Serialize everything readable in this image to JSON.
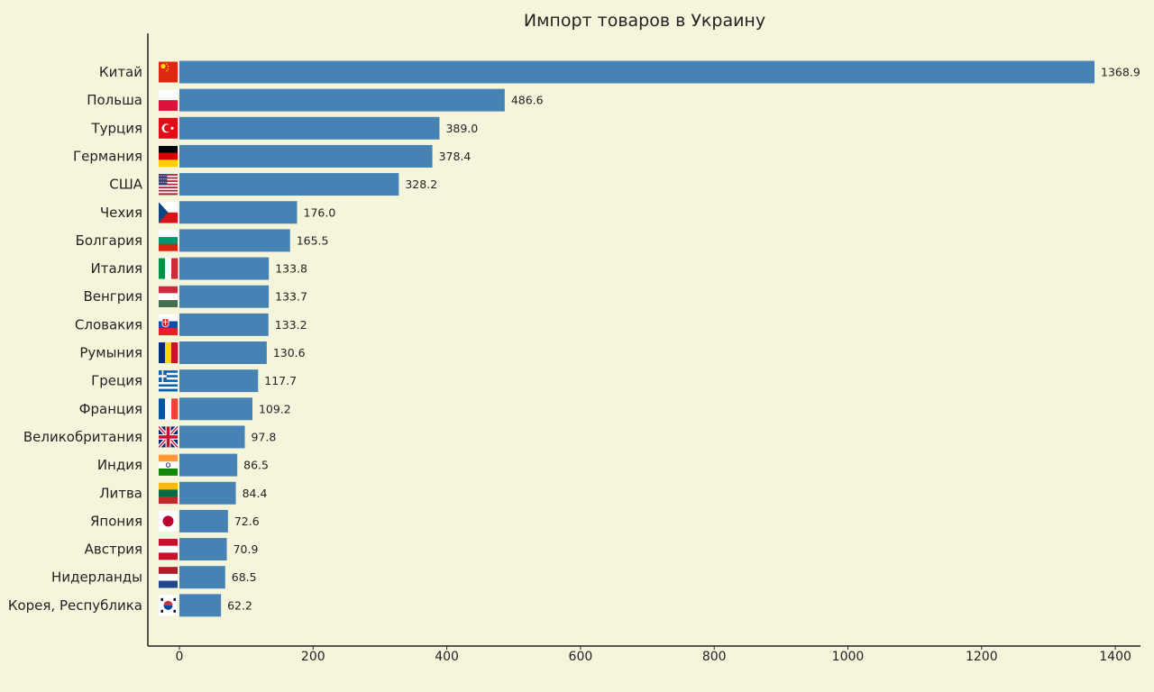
{
  "chart_data": {
    "type": "bar",
    "orientation": "horizontal",
    "title": "Импорт товаров в Украину",
    "xlabel": "",
    "ylabel": "",
    "xlim": [
      -47,
      1380
    ],
    "xticks": [
      0,
      200,
      400,
      600,
      800,
      1000,
      1200,
      1400
    ],
    "grid": false,
    "bar_color": "#4682b4",
    "background": "#f5f5dc",
    "categories": [
      "Китай",
      "Польша",
      "Турция",
      "Германия",
      "США",
      "Чехия",
      "Болгария",
      "Италия",
      "Венгрия",
      "Словакия",
      "Румыния",
      "Греция",
      "Франция",
      "Великобритания",
      "Индия",
      "Литва",
      "Япония",
      "Австрия",
      "Нидерланды",
      "Корея, Республика"
    ],
    "values": [
      1368.9,
      486.6,
      389.0,
      378.4,
      328.2,
      176.0,
      165.5,
      133.8,
      133.7,
      133.2,
      130.6,
      117.7,
      109.2,
      97.8,
      86.5,
      84.4,
      72.6,
      70.9,
      68.5,
      62.2
    ],
    "value_labels": [
      "1368.9",
      "486.6",
      "389.0",
      "378.4",
      "328.2",
      "176.0",
      "165.5",
      "133.8",
      "133.7",
      "133.2",
      "130.6",
      "117.7",
      "109.2",
      "97.8",
      "86.5",
      "84.4",
      "72.6",
      "70.9",
      "68.5",
      "62.2"
    ],
    "flags": [
      "china-flag-icon",
      "poland-flag-icon",
      "turkey-flag-icon",
      "germany-flag-icon",
      "usa-flag-icon",
      "czechia-flag-icon",
      "bulgaria-flag-icon",
      "italy-flag-icon",
      "hungary-flag-icon",
      "slovakia-flag-icon",
      "romania-flag-icon",
      "greece-flag-icon",
      "france-flag-icon",
      "uk-flag-icon",
      "india-flag-icon",
      "lithuania-flag-icon",
      "japan-flag-icon",
      "austria-flag-icon",
      "netherlands-flag-icon",
      "korea-flag-icon"
    ]
  }
}
